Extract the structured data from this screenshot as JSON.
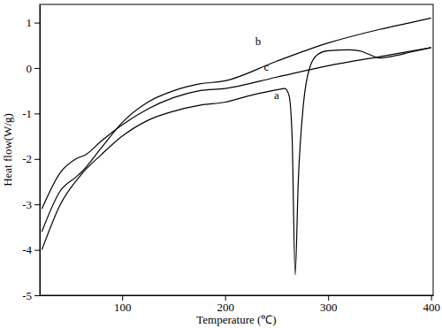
{
  "chart_data": {
    "type": "line",
    "x_label": "Temperature (℃)",
    "y_label": "Heat flow(W/g)",
    "xlim": [
      20,
      402
    ],
    "ylim": [
      -5,
      1.4
    ],
    "xticks": [
      100,
      200,
      300,
      400
    ],
    "yticks": [
      -5,
      -4,
      -3,
      -2,
      -1,
      0,
      1
    ],
    "grid": false,
    "color": "#000000",
    "series": [
      {
        "name": "a",
        "x": [
          22,
          40,
          60,
          80,
          100,
          125,
          150,
          175,
          200,
          225,
          250,
          258,
          262,
          265,
          268,
          271,
          276,
          282,
          290,
          300,
          320,
          330,
          340,
          350,
          360,
          380,
          400
        ],
        "values": [
          -4.0,
          -3.0,
          -2.35,
          -1.9,
          -1.5,
          -1.15,
          -0.95,
          -0.82,
          -0.75,
          -0.6,
          -0.48,
          -0.45,
          -0.6,
          -1.5,
          -4.55,
          -2.5,
          -0.8,
          0.0,
          0.3,
          0.38,
          0.4,
          0.38,
          0.3,
          0.22,
          0.25,
          0.35,
          0.45
        ]
      },
      {
        "name": "b",
        "x": [
          22,
          40,
          55,
          60,
          80,
          100,
          125,
          150,
          175,
          200,
          250,
          300,
          350,
          380,
          400
        ],
        "values": [
          -3.6,
          -2.7,
          -2.4,
          -2.3,
          -1.75,
          -1.2,
          -0.75,
          -0.5,
          -0.35,
          -0.28,
          0.15,
          0.55,
          0.85,
          1.0,
          1.1
        ]
      },
      {
        "name": "c",
        "x": [
          22,
          40,
          55,
          65,
          80,
          100,
          125,
          150,
          175,
          200,
          250,
          300,
          350,
          400
        ],
        "values": [
          -3.1,
          -2.3,
          -2.0,
          -1.9,
          -1.6,
          -1.25,
          -0.9,
          -0.65,
          -0.5,
          -0.45,
          -0.2,
          0.05,
          0.25,
          0.45
        ]
      }
    ],
    "annotations": [
      {
        "text": "a",
        "x": 250,
        "y": -0.68
      },
      {
        "text": "b",
        "x": 232,
        "y": 0.5
      },
      {
        "text": "c",
        "x": 240,
        "y": -0.05
      }
    ]
  }
}
